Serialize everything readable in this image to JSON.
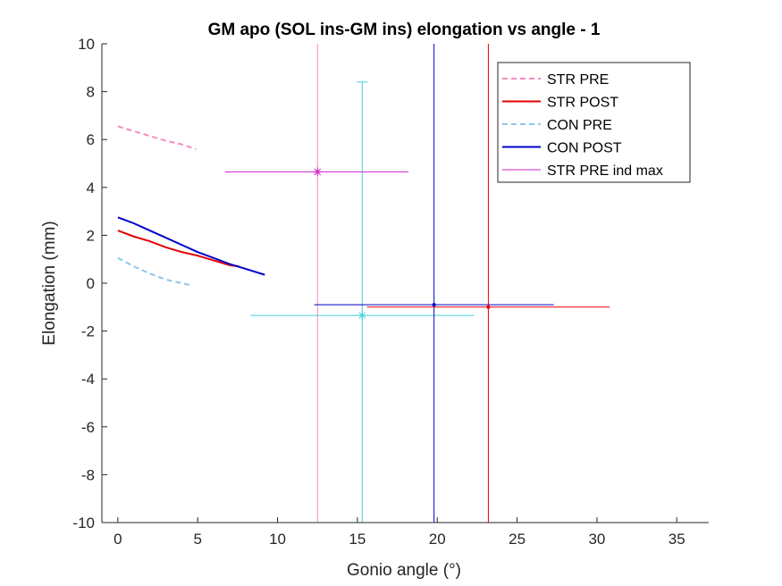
{
  "chart_data": {
    "type": "line",
    "title": "GM apo (SOL ins-GM ins) elongation vs angle - 1",
    "xlabel": "Gonio angle (°)",
    "ylabel": "Elongation (mm)",
    "xlim": [
      -1,
      37
    ],
    "ylim": [
      -10,
      10
    ],
    "xticks": [
      0,
      5,
      10,
      15,
      20,
      25,
      30,
      35
    ],
    "yticks": [
      -10,
      -8,
      -6,
      -4,
      -2,
      0,
      2,
      4,
      6,
      8,
      10
    ],
    "xtick_labels": [
      "0",
      "5",
      "10",
      "15",
      "20",
      "25",
      "30",
      "35"
    ],
    "ytick_labels": [
      "-10",
      "-8",
      "-6",
      "-4",
      "-2",
      "0",
      "2",
      "4",
      "6",
      "8",
      "10"
    ],
    "grid": false,
    "legend_position": "top-right",
    "series": [
      {
        "name": "STR PRE",
        "color": "#f38cc0",
        "style": "dashed",
        "x": [
          0,
          1,
          2,
          3,
          4,
          4.9
        ],
        "y": [
          6.55,
          6.35,
          6.15,
          5.95,
          5.8,
          5.6
        ]
      },
      {
        "name": "STR POST",
        "color": "#e60000",
        "style": "solid",
        "x": [
          0,
          1,
          2,
          3,
          4,
          5,
          6,
          7,
          7.6
        ],
        "y": [
          2.2,
          1.95,
          1.75,
          1.5,
          1.3,
          1.15,
          0.95,
          0.75,
          0.7
        ]
      },
      {
        "name": "CON PRE",
        "color": "#8cc6ea",
        "style": "dashed",
        "x": [
          0,
          1,
          2,
          3,
          4,
          4.7
        ],
        "y": [
          1.05,
          0.7,
          0.4,
          0.15,
          0.0,
          -0.1
        ]
      },
      {
        "name": "CON POST",
        "color": "#0000c8",
        "style": "solid",
        "x": [
          0,
          1,
          2,
          3,
          4,
          5,
          6,
          7,
          8,
          9.2
        ],
        "y": [
          2.75,
          2.5,
          2.2,
          1.9,
          1.6,
          1.3,
          1.05,
          0.8,
          0.6,
          0.35
        ]
      },
      {
        "name": "STR PRE ind max",
        "color": "#cc22cc",
        "style": "errorbar",
        "x": [
          12.5
        ],
        "y": [
          4.65
        ],
        "marker": "asterisk",
        "xneg": 5.8,
        "xpos": 5.7,
        "vline": true
      }
    ],
    "errorbars": [
      {
        "color": "#f38cc0",
        "x": 12.5,
        "y": 4.65,
        "vline": true
      },
      {
        "color": "#40d0d8",
        "x": 15.3,
        "y": -1.35,
        "marker": "asterisk",
        "xneg": 7.0,
        "xpos": 7.0,
        "yneg": 0,
        "ypos": 9.75,
        "vline": true,
        "cap_top": 8.4
      },
      {
        "color": "#0000c8",
        "x": 19.8,
        "y": -0.9,
        "marker": "dot",
        "xneg": 7.5,
        "xpos": 7.5,
        "vline": true
      },
      {
        "color": "#e60000",
        "x": 23.2,
        "y": -1.0,
        "marker": "dot",
        "xneg": 7.6,
        "xpos": 7.6,
        "vline": true
      }
    ]
  }
}
